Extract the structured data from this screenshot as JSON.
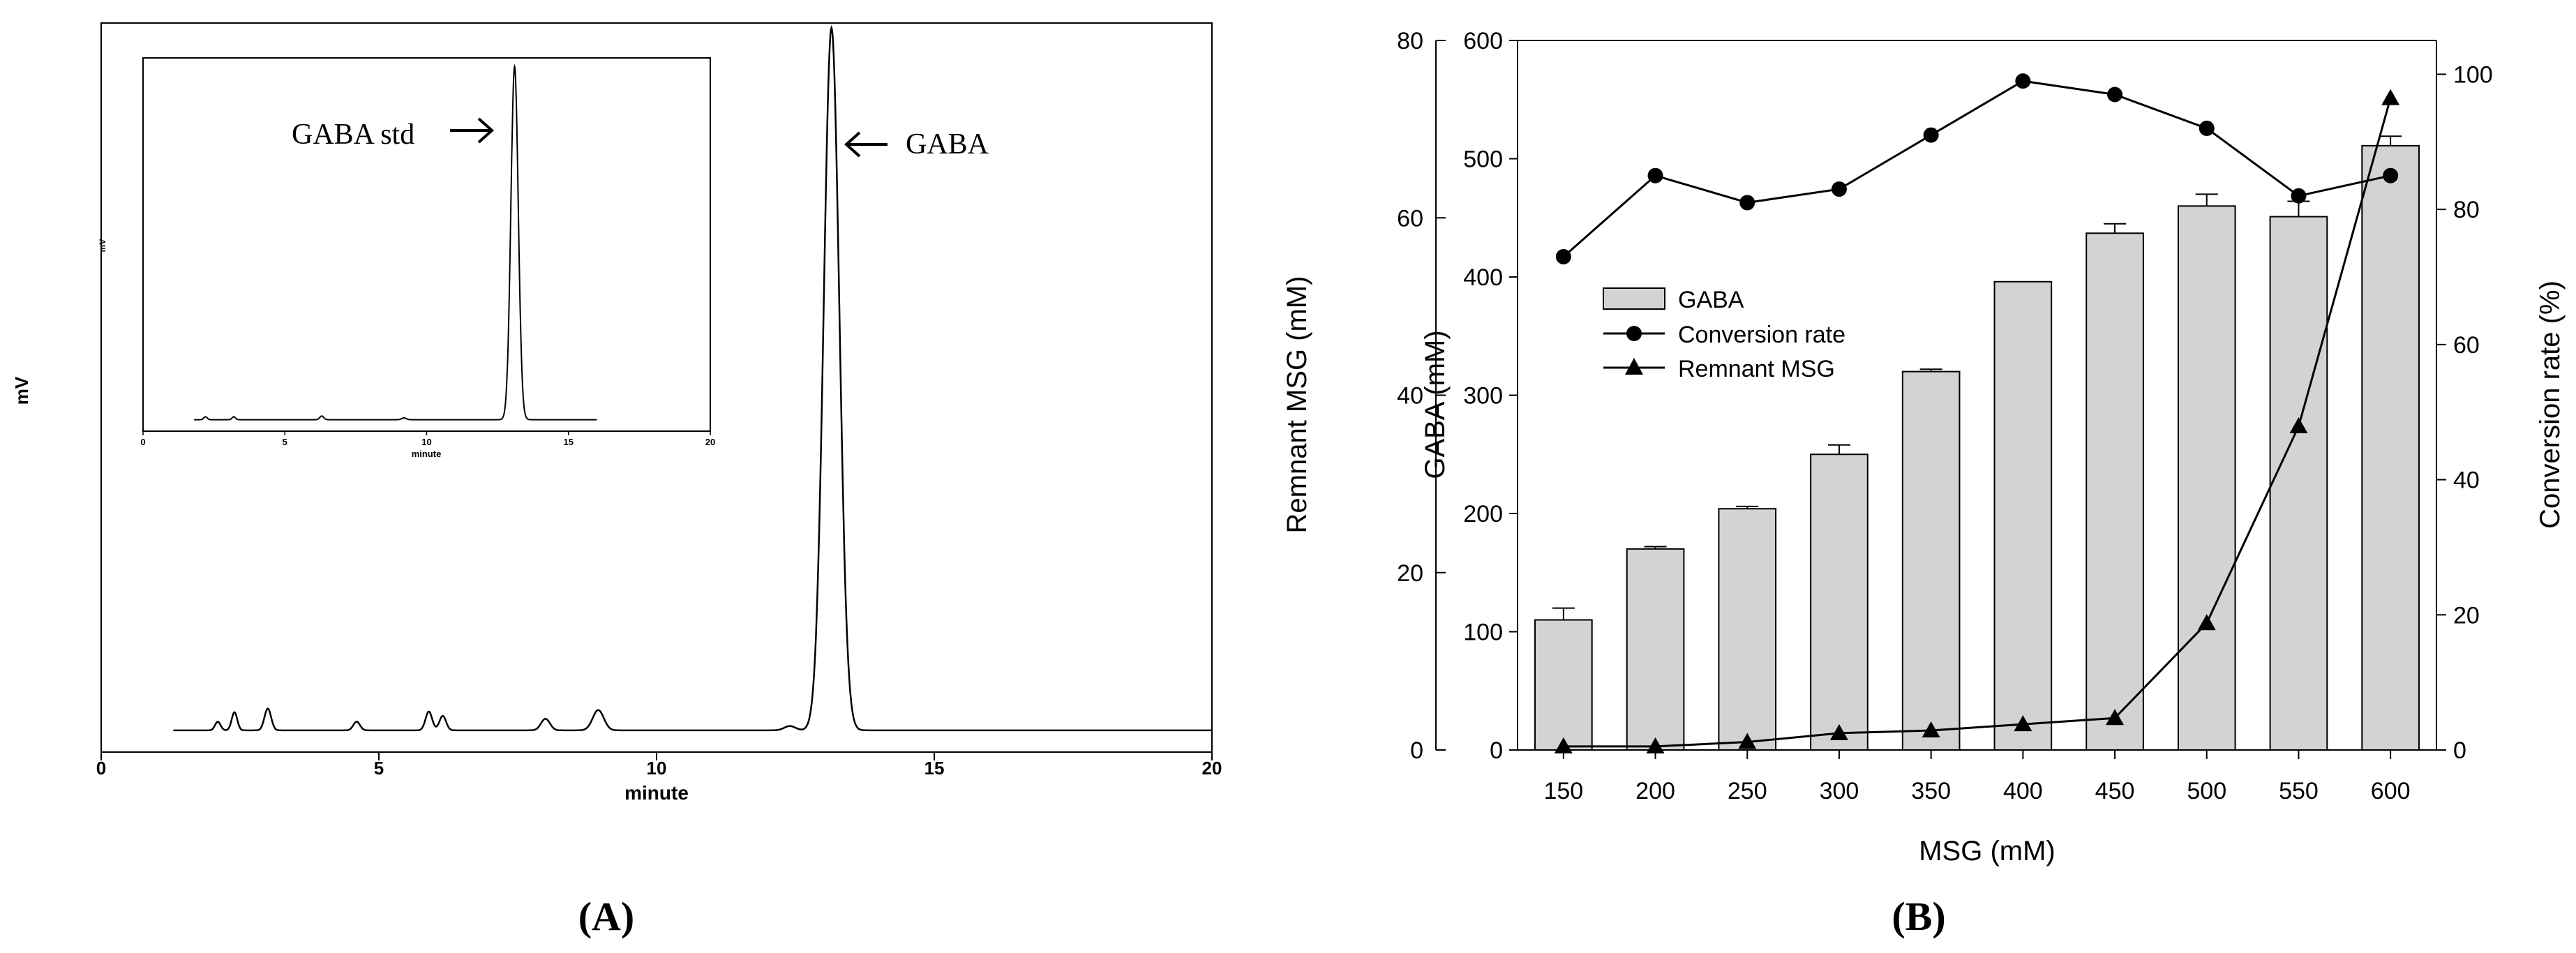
{
  "chart_data": [
    {
      "type": "line",
      "panel_label": "(A)",
      "title": "",
      "xlabel": "minute",
      "ylabel": "mV",
      "xlim": [
        0,
        20
      ],
      "xticks": [
        0,
        5,
        10,
        15,
        20
      ],
      "series": [
        {
          "name": "sample chromatogram",
          "baseline": 0.03,
          "peaks": [
            {
              "x": 2.1,
              "height": 0.012,
              "width": 0.05
            },
            {
              "x": 2.4,
              "height": 0.025,
              "width": 0.05
            },
            {
              "x": 3.0,
              "height": 0.03,
              "width": 0.06
            },
            {
              "x": 4.6,
              "height": 0.012,
              "width": 0.06
            },
            {
              "x": 5.9,
              "height": 0.026,
              "width": 0.06
            },
            {
              "x": 6.15,
              "height": 0.02,
              "width": 0.06
            },
            {
              "x": 8.0,
              "height": 0.016,
              "width": 0.08
            },
            {
              "x": 8.95,
              "height": 0.028,
              "width": 0.1
            },
            {
              "x": 12.4,
              "height": 0.006,
              "width": 0.1
            },
            {
              "x": 13.15,
              "height": 0.97,
              "width": 0.14
            }
          ]
        }
      ],
      "annotations": [
        {
          "text": "GABA",
          "arrow": "left",
          "x": 13.15
        }
      ],
      "inset": {
        "xlabel": "minute",
        "ylabel": "mV",
        "xlim": [
          0,
          20
        ],
        "xticks": [
          0,
          5,
          10,
          15,
          20
        ],
        "baseline": 0.02,
        "peaks": [
          {
            "x": 2.2,
            "height": 0.008,
            "width": 0.06
          },
          {
            "x": 3.2,
            "height": 0.008,
            "width": 0.06
          },
          {
            "x": 6.3,
            "height": 0.01,
            "width": 0.07
          },
          {
            "x": 9.2,
            "height": 0.005,
            "width": 0.08
          },
          {
            "x": 13.1,
            "height": 0.97,
            "width": 0.13
          }
        ],
        "annotations": [
          {
            "text": "GABA std",
            "arrow": "right",
            "x": 13.1
          }
        ]
      }
    },
    {
      "type": "bar",
      "panel_label": "(B)",
      "title": "",
      "xlabel": "MSG (mM)",
      "categories": [
        "150",
        "200",
        "250",
        "300",
        "350",
        "400",
        "450",
        "500",
        "550",
        "600"
      ],
      "series": [
        {
          "name": "GABA",
          "type": "bar",
          "axis": "GABA (mM)",
          "values": [
            110,
            170,
            204,
            250,
            320,
            396,
            437,
            460,
            451,
            511
          ],
          "error": [
            10,
            2,
            2,
            8,
            2,
            0,
            8,
            10,
            13,
            8
          ]
        },
        {
          "name": "Conversion rate",
          "type": "line",
          "marker": "circle",
          "axis": "Conversion rate (%)",
          "values": [
            73,
            85,
            81,
            83,
            91,
            99,
            97,
            92,
            82,
            85
          ]
        },
        {
          "name": "Remnant MSG",
          "type": "line",
          "marker": "triangle",
          "axis": "Remnant MSG (mM)",
          "values": [
            0.4,
            0.4,
            0.9,
            1.9,
            2.2,
            2.9,
            3.6,
            14.3,
            36.5,
            73.5
          ]
        }
      ],
      "axes": {
        "gaba": {
          "label": "GABA (mM)",
          "ylim": [
            0,
            600
          ],
          "ticks": [
            0,
            100,
            200,
            300,
            400,
            500,
            600
          ]
        },
        "remnant": {
          "label": "Remnant MSG (mM)",
          "ylim": [
            0,
            80
          ],
          "ticks": [
            0,
            20,
            40,
            60,
            80
          ]
        },
        "conversion": {
          "label": "Conversion rate (%)",
          "ylim": [
            0,
            105
          ],
          "ticks": [
            0,
            20,
            40,
            60,
            80,
            100
          ]
        }
      },
      "legend": {
        "placement": "center-left",
        "entries": [
          "GABA",
          "Conversion rate",
          "Remnant MSG"
        ]
      }
    }
  ],
  "colors": {
    "bar_fill": "#d3d3d3",
    "ink": "#000000",
    "inset_frame": "#000000"
  }
}
